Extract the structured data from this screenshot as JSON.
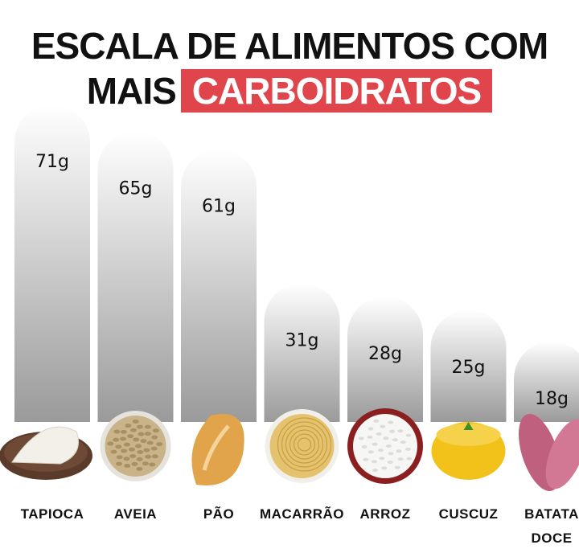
{
  "header": {
    "title_line1": "ESCALA DE ALIMENTOS COM",
    "title_line2_prefix": "MAIS",
    "title_line2_highlight": "CARBOIDRATOS"
  },
  "colors": {
    "highlight": "#e0454b",
    "bar_top": "#ffffff",
    "bar_bottom": "#9a9a9a"
  },
  "chart_data": {
    "type": "bar",
    "title": "ESCALA DE ALIMENTOS COM MAIS CARBOIDRATOS",
    "categories": [
      "TAPIOCA",
      "AVEIA",
      "PÃO",
      "MACARRÃO",
      "ARROZ",
      "CUSCUZ",
      "BATATA DOCE"
    ],
    "values": [
      71,
      65,
      61,
      31,
      28,
      25,
      18
    ],
    "value_labels": [
      "71g",
      "65g",
      "61g",
      "31g",
      "28g",
      "25g",
      "18g"
    ],
    "icons": [
      "tapioca-icon",
      "oats-icon",
      "bread-icon",
      "pasta-icon",
      "rice-icon",
      "couscous-icon",
      "sweet-potato-icon"
    ],
    "grid": false
  }
}
